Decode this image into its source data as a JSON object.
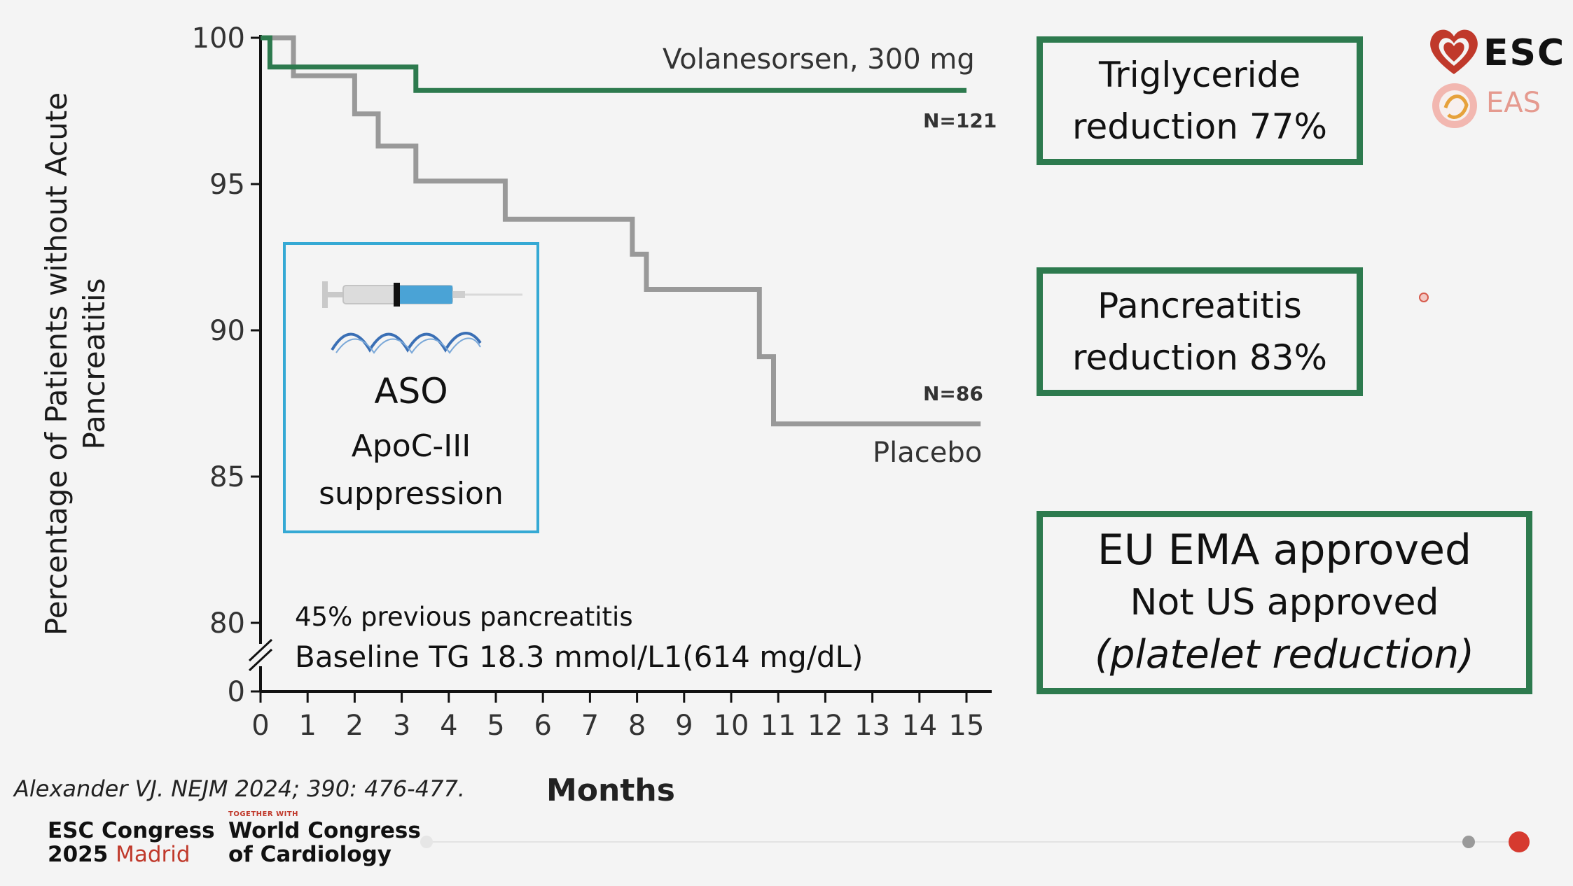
{
  "chart_data": {
    "type": "line",
    "xlabel": "Months",
    "ylabel_lines": [
      "Percentage of Patients without Acute",
      "Pancreatitis"
    ],
    "x_ticks": [
      0,
      1,
      2,
      3,
      4,
      5,
      6,
      7,
      8,
      9,
      10,
      11,
      12,
      13,
      14,
      15
    ],
    "y_ticks": [
      100,
      95,
      90,
      85,
      80,
      0
    ],
    "ylim": [
      80,
      100
    ],
    "y_axis_break": true,
    "xlim": [
      0,
      15
    ],
    "series": [
      {
        "name": "Volanesorsen, 300 mg",
        "n_label": "N=121",
        "color": "#2d7a4e",
        "points": [
          [
            0,
            100
          ],
          [
            0.2,
            100
          ],
          [
            0.2,
            99
          ],
          [
            3.3,
            99
          ],
          [
            3.3,
            98.2
          ],
          [
            15,
            98.2
          ]
        ]
      },
      {
        "name": "Placebo",
        "n_label": "N=86",
        "color": "#999999",
        "points": [
          [
            0,
            100
          ],
          [
            0.7,
            100
          ],
          [
            0.7,
            98.7
          ],
          [
            2,
            98.7
          ],
          [
            2,
            97.4
          ],
          [
            2.5,
            97.4
          ],
          [
            2.5,
            96.3
          ],
          [
            3.3,
            96.3
          ],
          [
            3.3,
            95.1
          ],
          [
            5.2,
            95.1
          ],
          [
            5.2,
            93.8
          ],
          [
            7.9,
            93.8
          ],
          [
            7.9,
            92.6
          ],
          [
            8.2,
            92.6
          ],
          [
            8.2,
            91.4
          ],
          [
            10.6,
            91.4
          ],
          [
            10.6,
            89.1
          ],
          [
            10.9,
            89.1
          ],
          [
            10.9,
            86.8
          ],
          [
            15.3,
            86.8
          ]
        ]
      }
    ],
    "annotations": [
      "45% previous pancreatitis",
      "Baseline TG 18.3 mmol/L1(614 mg/dL)"
    ]
  },
  "aso_box": {
    "title": "ASO",
    "line2": "ApoC-III",
    "line3": "suppression"
  },
  "fact_boxes": [
    {
      "lines": [
        "Triglyceride",
        "reduction 77%"
      ]
    },
    {
      "lines": [
        "Pancreatitis",
        "reduction 83%"
      ]
    },
    {
      "lines": [
        "EU EMA approved",
        "Not US approved",
        "(platelet reduction)"
      ]
    }
  ],
  "citation": "Alexander VJ. NEJM 2024; 390: 476-477.",
  "footer": {
    "congress_line1": "ESC Congress",
    "congress_line2_year": "2025",
    "congress_line2_city": "Madrid",
    "together_with": "TOGETHER WITH",
    "wc_line1": "World Congress",
    "wc_line2": "of Cardiology"
  },
  "logos": {
    "esc": "ESC",
    "eas": "EAS"
  },
  "icons": [
    "syringe-icon",
    "dna-wave-icon",
    "esc-heart-icon",
    "eas-logo-icon"
  ],
  "colors": {
    "accent_green": "#2d7a4e",
    "placebo_gray": "#999999",
    "aso_blue": "#35a9d4",
    "congress_red": "#c0392b"
  },
  "progress": {
    "current_slide_fraction": 1.0
  }
}
